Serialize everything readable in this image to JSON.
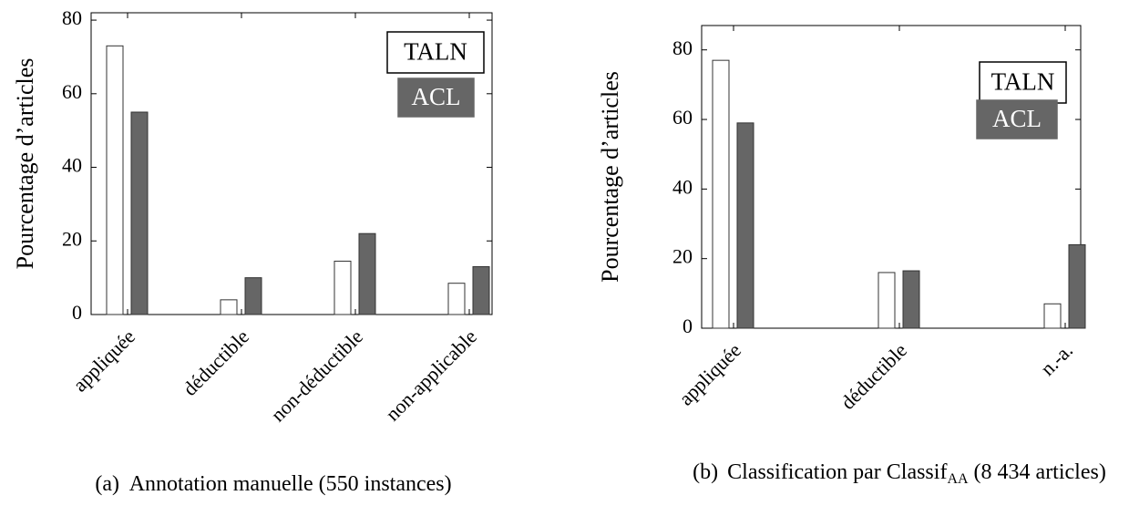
{
  "chart_data": [
    {
      "type": "bar",
      "ylabel": "Pourcentage d’articles",
      "categories": [
        "appliquée",
        "déductible",
        "non-déductible",
        "non-applicable"
      ],
      "series": [
        {
          "name": "TALN",
          "color": "#ffffff",
          "values": [
            73,
            4,
            14.5,
            8.5
          ]
        },
        {
          "name": "ACL",
          "color": "#666666",
          "values": [
            55,
            10,
            22,
            13
          ]
        }
      ],
      "ylim": [
        0,
        82
      ],
      "yticks": [
        0,
        20,
        40,
        60,
        80
      ],
      "legend": "top-right",
      "caption": "(a)  Annotation manuelle (550 instances)"
    },
    {
      "type": "bar",
      "ylabel": "Pourcentage d’articles",
      "categories": [
        "appliquée",
        "déductible",
        "n.-a."
      ],
      "series": [
        {
          "name": "TALN",
          "color": "#ffffff",
          "values": [
            77,
            16,
            7
          ]
        },
        {
          "name": "ACL",
          "color": "#666666",
          "values": [
            59,
            16.5,
            24
          ]
        }
      ],
      "ylim": [
        0,
        87
      ],
      "yticks": [
        0,
        20,
        40,
        60,
        80
      ],
      "legend": "top-right",
      "caption": {
        "label": "(b)",
        "text": "Classification par Classif",
        "subscript": "AA",
        "suffix": "(8 434 articles)"
      }
    }
  ]
}
